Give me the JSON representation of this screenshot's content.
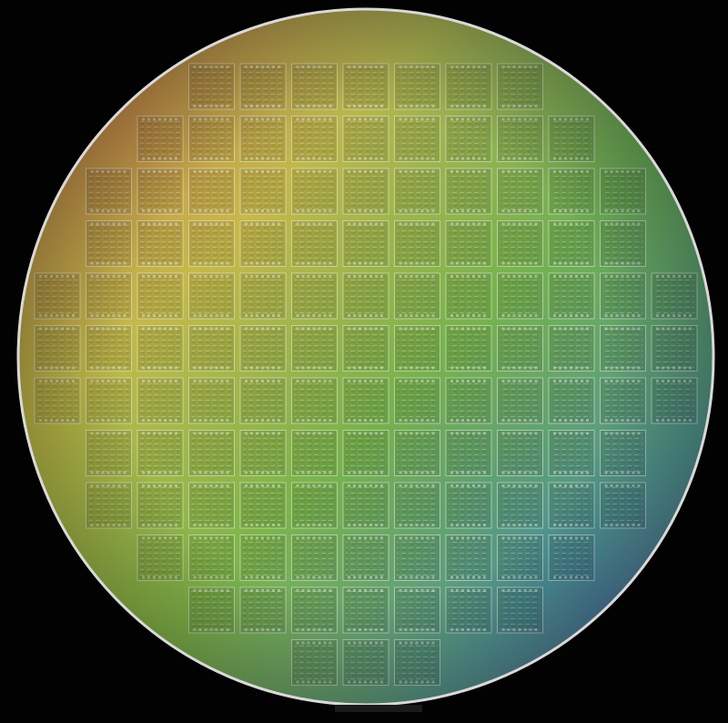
{
  "image": {
    "subject": "silicon-wafer",
    "background_color": "#020202",
    "wafer_rim_color": "#d9d9d9",
    "flat_color": "#1a1a1a",
    "die_line_color": "#e8f0e8",
    "gradient": {
      "top_left": "#c8664a",
      "top": "#d9c24a",
      "center": "#7fb84a",
      "right": "#3f9b7e",
      "bottom_right": "#5b5fb8",
      "bottom_left": "#a8c243"
    },
    "die_grid": {
      "rows": [
        {
          "row": 0,
          "cols": [
            3,
            9
          ]
        },
        {
          "row": 1,
          "cols": [
            2,
            10
          ]
        },
        {
          "row": 2,
          "cols": [
            1,
            11
          ]
        },
        {
          "row": 3,
          "cols": [
            1,
            11
          ]
        },
        {
          "row": 4,
          "cols": [
            0,
            12
          ]
        },
        {
          "row": 5,
          "cols": [
            0,
            12
          ]
        },
        {
          "row": 6,
          "cols": [
            0,
            12
          ]
        },
        {
          "row": 7,
          "cols": [
            1,
            11
          ]
        },
        {
          "row": 8,
          "cols": [
            1,
            11
          ]
        },
        {
          "row": 9,
          "cols": [
            2,
            10
          ]
        },
        {
          "row": 10,
          "cols": [
            3,
            9
          ]
        },
        {
          "row": 11,
          "cols": [
            5,
            7
          ]
        }
      ]
    }
  }
}
